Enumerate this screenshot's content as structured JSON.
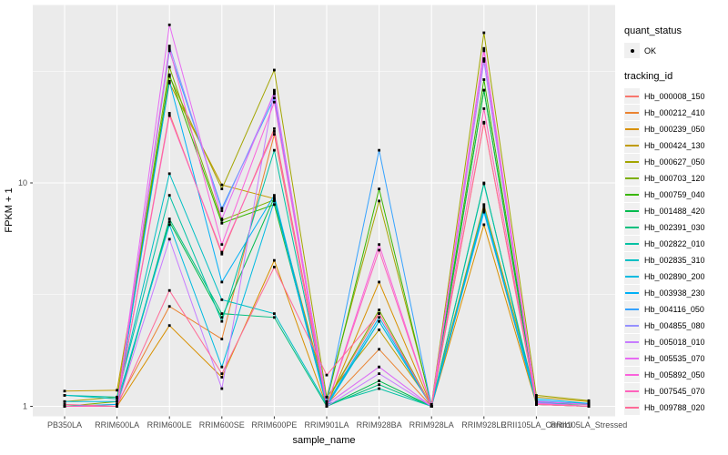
{
  "chart_data": {
    "type": "line",
    "title": "",
    "xlabel": "sample_name",
    "ylabel": "FPKM + 1",
    "yscale": "log10",
    "y_ticks": [
      1,
      10
    ],
    "y_minor": [
      3.1623,
      31.623
    ],
    "ylim": [
      0.93,
      62
    ],
    "grid": "on",
    "panel_bg": "#EBEBEB",
    "gridline_color": "#FFFFFF",
    "axis_text_color": "#4D4D4D",
    "point_color": "#000000",
    "categories": [
      "PB350LA",
      "RRIM600LA",
      "RRIM600LE",
      "RRIM600SE",
      "RRIM600PE",
      "RRIM901LA",
      "RRIM928BA",
      "RRIM928LA",
      "RRIM928LE",
      "RRII105LA_Control",
      "RRII105LA_Stressed"
    ],
    "legend": {
      "shape_title": "quant_status",
      "shape_label": "OK",
      "color_title": "tracking_id",
      "position": "right"
    },
    "series": [
      {
        "name": "Hb_000008_150",
        "color": "#F8766D",
        "values": [
          1.0,
          1.0,
          20.5,
          4.8,
          17.5,
          1.05,
          2.6,
          1.0,
          18.5,
          1.05,
          1.02
        ]
      },
      {
        "name": "Hb_000212_410",
        "color": "#EA8331",
        "values": [
          1.0,
          1.02,
          2.8,
          2.0,
          16.5,
          1.02,
          1.8,
          1.0,
          7.5,
          1.03,
          1.02
        ]
      },
      {
        "name": "Hb_000239_050",
        "color": "#D89000",
        "values": [
          1.0,
          1.0,
          2.3,
          1.35,
          4.5,
          1.0,
          3.6,
          1.0,
          6.5,
          1.02,
          1.0
        ]
      },
      {
        "name": "Hb_000424_130",
        "color": "#C09B00",
        "values": [
          1.17,
          1.18,
          28,
          9.8,
          8.5,
          1.1,
          2.2,
          1.02,
          8.0,
          1.1,
          1.05
        ]
      },
      {
        "name": "Hb_000627_050",
        "color": "#A3A500",
        "values": [
          1.05,
          1.1,
          30,
          9.4,
          32,
          1.1,
          8.3,
          1.02,
          47,
          1.12,
          1.06
        ]
      },
      {
        "name": "Hb_000703_120",
        "color": "#7CAE00",
        "values": [
          1.0,
          1.05,
          33,
          6.8,
          8.4,
          1.05,
          2.7,
          1.0,
          26,
          1.05,
          1.02
        ]
      },
      {
        "name": "Hb_000759_040",
        "color": "#39B600",
        "values": [
          1.0,
          1.0,
          30.5,
          6.6,
          8.0,
          1.05,
          9.4,
          1.0,
          29,
          1.04,
          1.02
        ]
      },
      {
        "name": "Hb_001488_420",
        "color": "#00BB4E",
        "values": [
          1.0,
          1.0,
          6.7,
          2.5,
          8.6,
          1.0,
          1.3,
          1.0,
          26,
          1.02,
          1.0
        ]
      },
      {
        "name": "Hb_002391_030",
        "color": "#00BF7D",
        "values": [
          1.0,
          1.0,
          6.9,
          2.6,
          2.5,
          1.0,
          1.25,
          1.0,
          10,
          1.02,
          1.0
        ]
      },
      {
        "name": "Hb_002822_010",
        "color": "#00C1A3",
        "values": [
          1.12,
          1.1,
          8.8,
          2.4,
          14,
          1.02,
          1.2,
          1.0,
          9.9,
          1.05,
          1.03
        ]
      },
      {
        "name": "Hb_002835_310",
        "color": "#00BFC4",
        "values": [
          1.12,
          1.08,
          11,
          3.0,
          2.6,
          1.02,
          2.4,
          1.0,
          7.8,
          1.04,
          1.02
        ]
      },
      {
        "name": "Hb_002890_200",
        "color": "#00BAE0",
        "values": [
          1.05,
          1.05,
          6.5,
          1.5,
          8.3,
          1.0,
          2.4,
          1.0,
          7.6,
          1.03,
          1.0
        ]
      },
      {
        "name": "Hb_003938_230",
        "color": "#00B0F6",
        "values": [
          1.0,
          1.02,
          28.5,
          3.6,
          8.8,
          1.02,
          2.5,
          1.0,
          7.4,
          1.08,
          1.03
        ]
      },
      {
        "name": "Hb_004116_050",
        "color": "#35A2FF",
        "values": [
          1.0,
          1.0,
          39,
          7.7,
          24,
          1.05,
          14,
          1.0,
          36,
          1.06,
          1.02
        ]
      },
      {
        "name": "Hb_004855_080",
        "color": "#9590FF",
        "values": [
          1.0,
          1.0,
          41,
          7.5,
          25,
          1.02,
          1.5,
          1.0,
          35,
          1.04,
          1.0
        ]
      },
      {
        "name": "Hb_005018_010",
        "color": "#C77CFF",
        "values": [
          1.0,
          1.0,
          5.6,
          1.2,
          26,
          1.0,
          1.4,
          1.0,
          35.5,
          1.03,
          1.0
        ]
      },
      {
        "name": "Hb_005535_070",
        "color": "#E76BF3",
        "values": [
          1.0,
          1.0,
          51,
          6.9,
          25.5,
          1.02,
          1.5,
          1.0,
          40,
          1.05,
          1.02
        ]
      },
      {
        "name": "Hb_005892_050",
        "color": "#FA62DB",
        "values": [
          1.0,
          1.0,
          40,
          5.3,
          23,
          1.0,
          5.3,
          1.0,
          39,
          1.03,
          1.0
        ]
      },
      {
        "name": "Hb_007545_070",
        "color": "#FF62BC",
        "values": [
          1.0,
          1.0,
          20,
          4.9,
          17,
          1.0,
          5.0,
          1.0,
          21.5,
          1.02,
          1.0
        ]
      },
      {
        "name": "Hb_009788_020",
        "color": "#FF6A98",
        "values": [
          1.02,
          1.0,
          3.3,
          1.4,
          4.2,
          1.38,
          2.6,
          1.0,
          18.7,
          1.02,
          1.0
        ]
      }
    ]
  }
}
